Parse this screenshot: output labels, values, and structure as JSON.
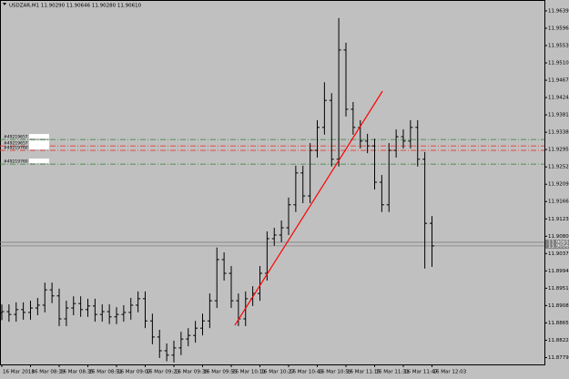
{
  "chart_data": {
    "type": "ohlc",
    "title": "USDZAR,M1  11.90290 11.90646 11.90280 11.90610",
    "color": "#000000",
    "background": "#c0c0c0",
    "categories": [
      "16 Mar 2018",
      null,
      null,
      null,
      "16 Mar 08:19",
      null,
      null,
      null,
      "16 Mar 08:35",
      null,
      null,
      null,
      "16 Mar 08:51",
      null,
      null,
      null,
      "16 Mar 09:07",
      null,
      null,
      null,
      "16 Mar 09:23",
      null,
      null,
      null,
      "16 Mar 09:39",
      null,
      null,
      null,
      "16 Mar 09:55",
      null,
      null,
      null,
      "16 Mar 10:11",
      null,
      null,
      null,
      "16 Mar 10:27",
      null,
      null,
      null,
      "16 Mar 10:43",
      null,
      null,
      null,
      "16 Mar 10:59",
      null,
      null,
      null,
      "16 Mar 11:15",
      null,
      null,
      null,
      "16 Mar 11:31",
      null,
      null,
      null,
      "16 Mar 11:47",
      null,
      null,
      null,
      "16 Mar 12:03"
    ],
    "open": [
      11.889,
      11.8893,
      11.8886,
      11.8898,
      11.8891,
      11.8902,
      11.8909,
      11.8947,
      11.8932,
      11.8875,
      11.8902,
      11.8913,
      11.8898,
      11.8907,
      11.8886,
      11.8893,
      11.888,
      11.8886,
      11.8891,
      11.8909,
      11.8925,
      11.887,
      11.883,
      11.8796,
      11.8785,
      11.8803,
      11.8825,
      11.8834,
      11.8852,
      11.887,
      11.892,
      11.9022,
      11.8988,
      11.892,
      11.8875,
      11.8925,
      11.8938,
      11.8988,
      11.9074,
      11.9083,
      11.9101,
      11.9158,
      11.9237,
      11.918,
      11.9293,
      11.935,
      11.9417,
      11.9271,
      11.9542,
      11.9395,
      11.935,
      11.9316,
      11.9304,
      11.9214,
      11.9158,
      11.9293,
      11.9327,
      11.9316,
      11.935,
      11.9271,
      11.9112
    ],
    "high": [
      11.8911,
      11.8911,
      11.8916,
      11.8916,
      11.892,
      11.8927,
      11.8965,
      11.8965,
      11.895,
      11.892,
      11.8931,
      11.8931,
      11.8925,
      11.8925,
      11.8911,
      11.8911,
      11.8904,
      11.8909,
      11.8927,
      11.8943,
      11.8943,
      11.8888,
      11.8848,
      11.8814,
      11.8821,
      11.8843,
      11.8852,
      11.887,
      11.8888,
      11.8938,
      11.9052,
      11.904,
      11.9006,
      11.8938,
      11.8943,
      11.8956,
      11.9006,
      11.9092,
      11.9101,
      11.9119,
      11.9176,
      11.9255,
      11.9255,
      11.9311,
      11.9368,
      11.9462,
      11.9435,
      11.9621,
      11.956,
      11.9413,
      11.9368,
      11.9334,
      11.9322,
      11.9232,
      11.9311,
      11.9345,
      11.9345,
      11.9368,
      11.9368,
      11.9289,
      11.913
    ],
    "low": [
      11.8872,
      11.8868,
      11.8868,
      11.8873,
      11.8873,
      11.8884,
      11.8891,
      11.8914,
      11.8857,
      11.8857,
      11.8884,
      11.888,
      11.888,
      11.8868,
      11.8868,
      11.8862,
      11.8862,
      11.8868,
      11.8873,
      11.8891,
      11.8852,
      11.8812,
      11.8778,
      11.877,
      11.8767,
      11.8785,
      11.8807,
      11.8816,
      11.8834,
      11.8852,
      11.8902,
      11.897,
      11.8902,
      11.8857,
      11.8857,
      11.8907,
      11.892,
      11.897,
      11.9056,
      11.9065,
      11.9083,
      11.914,
      11.9162,
      11.9162,
      11.9275,
      11.9332,
      11.9253,
      11.9253,
      11.9377,
      11.9332,
      11.9298,
      11.9286,
      11.9196,
      11.914,
      11.914,
      11.9275,
      11.9298,
      11.9298,
      11.9253,
      11.9,
      11.9004
    ],
    "close": [
      11.8893,
      11.8886,
      11.8898,
      11.8891,
      11.8902,
      11.8909,
      11.8947,
      11.8932,
      11.8875,
      11.8902,
      11.8913,
      11.8898,
      11.8907,
      11.8886,
      11.8893,
      11.888,
      11.8886,
      11.8891,
      11.8909,
      11.8925,
      11.887,
      11.883,
      11.8796,
      11.8785,
      11.8803,
      11.8825,
      11.8834,
      11.8852,
      11.887,
      11.892,
      11.9022,
      11.8988,
      11.892,
      11.8875,
      11.8925,
      11.8938,
      11.8988,
      11.9074,
      11.9083,
      11.9101,
      11.9158,
      11.9237,
      11.918,
      11.9293,
      11.935,
      11.9417,
      11.9271,
      11.9542,
      11.9395,
      11.935,
      11.9316,
      11.9304,
      11.9214,
      11.9158,
      11.9293,
      11.9327,
      11.9316,
      11.935,
      11.9271,
      11.9112,
      11.9056
    ],
    "ylim": [
      11.8762,
      11.9666
    ],
    "yticks": [
      {
        "value": 11.9639,
        "label": "11.96390"
      },
      {
        "value": 11.9596,
        "label": "11.95960"
      },
      {
        "value": 11.9553,
        "label": "11.95530"
      },
      {
        "value": 11.951,
        "label": "11.95100"
      },
      {
        "value": 11.9467,
        "label": "11.94670"
      },
      {
        "value": 11.9424,
        "label": "11.94240"
      },
      {
        "value": 11.9381,
        "label": "11.93810"
      },
      {
        "value": 11.9338,
        "label": "11.93380"
      },
      {
        "value": 11.9295,
        "label": "11.92950"
      },
      {
        "value": 11.9252,
        "label": "11.92520"
      },
      {
        "value": 11.9209,
        "label": "11.92090"
      },
      {
        "value": 11.9166,
        "label": "11.91660"
      },
      {
        "value": 11.9123,
        "label": "11.91230"
      },
      {
        "value": 11.908,
        "label": "11.90800"
      },
      {
        "value": 11.9037,
        "label": "11.90370"
      },
      {
        "value": 11.8994,
        "label": "11.89940"
      },
      {
        "value": 11.8951,
        "label": "11.89510"
      },
      {
        "value": 11.8908,
        "label": "11.89080"
      },
      {
        "value": 11.8865,
        "label": "11.88650"
      },
      {
        "value": 11.8822,
        "label": "11.88220"
      },
      {
        "value": 11.8779,
        "label": "11.87790"
      }
    ],
    "price_lines": [
      {
        "value": 11.9065,
        "label": "11.90650",
        "color": "#808080"
      },
      {
        "value": 11.9056,
        "label": "11.90560",
        "color": "#808080"
      }
    ],
    "levels": [
      {
        "name": "#49219657 tp",
        "value": 11.932,
        "color": "#2e7d32"
      },
      {
        "name": "#49219657 sl",
        "value": 11.9304,
        "color": "#e53935"
      },
      {
        "name": "#49219760 sl",
        "value": 11.9293,
        "color": "#e53935"
      },
      {
        "name": "#49219760 tp",
        "value": 11.9259,
        "color": "#2e7d32"
      }
    ],
    "trendline": {
      "color": "#ff0000",
      "values": [
        11.8859,
        11.944
      ]
    },
    "grid": false
  }
}
